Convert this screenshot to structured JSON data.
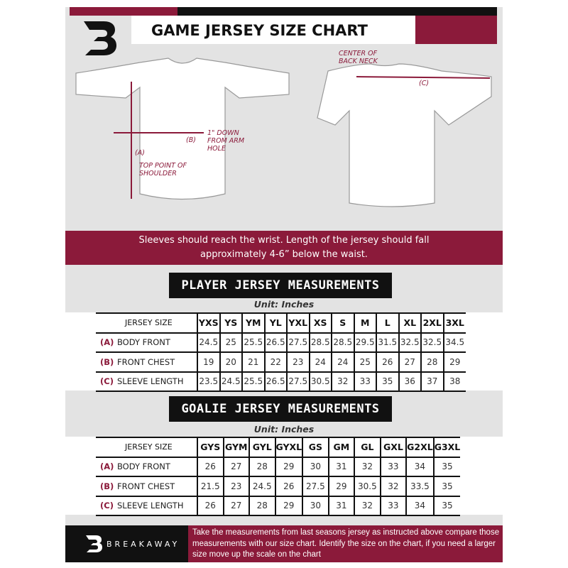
{
  "brand": {
    "name": "BREAKAWAY",
    "logo_letter": "B",
    "accent": "#8b1a3a"
  },
  "title": "GAME JERSEY SIZE CHART",
  "diagram": {
    "a_label": "(A)",
    "a_note": "TOP POINT OF SHOULDER",
    "b_label": "(B)",
    "b_note": "1\" DOWN FROM ARM HOLE",
    "c_label": "(C)",
    "c_note": "CENTER OF BACK NECK"
  },
  "banner": "Sleeves should reach the wrist. Length of the jersey should fall approximately 4-6” below the waist.",
  "player": {
    "heading": "PLAYER JERSEY MEASUREMENTS",
    "unit": "Unit: Inches",
    "header": "JERSEY SIZE",
    "sizes": [
      "YXS",
      "YS",
      "YM",
      "YL",
      "YXL",
      "XS",
      "S",
      "M",
      "L",
      "XL",
      "2XL",
      "3XL"
    ],
    "rows": [
      {
        "key": "(A)",
        "label": "BODY FRONT",
        "values": [
          "24.5",
          "25",
          "25.5",
          "26.5",
          "27.5",
          "28.5",
          "28.5",
          "29.5",
          "31.5",
          "32.5",
          "32.5",
          "34.5"
        ]
      },
      {
        "key": "(B)",
        "label": "FRONT CHEST",
        "values": [
          "19",
          "20",
          "21",
          "22",
          "23",
          "24",
          "24",
          "25",
          "26",
          "27",
          "28",
          "29"
        ]
      },
      {
        "key": "(C)",
        "label": "SLEEVE LENGTH",
        "values": [
          "23.5",
          "24.5",
          "25.5",
          "26.5",
          "27.5",
          "30.5",
          "32",
          "33",
          "35",
          "36",
          "37",
          "38"
        ]
      }
    ]
  },
  "goalie": {
    "heading": "GOALIE JERSEY MEASUREMENTS",
    "unit": "Unit: Inches",
    "header": "JERSEY SIZE",
    "sizes": [
      "GYS",
      "GYM",
      "GYL",
      "GYXL",
      "GS",
      "GM",
      "GL",
      "GXL",
      "G2XL",
      "G3XL"
    ],
    "rows": [
      {
        "key": "(A)",
        "label": "BODY FRONT",
        "values": [
          "26",
          "27",
          "28",
          "29",
          "30",
          "31",
          "32",
          "33",
          "34",
          "35"
        ]
      },
      {
        "key": "(B)",
        "label": "FRONT CHEST",
        "values": [
          "21.5",
          "23",
          "24.5",
          "26",
          "27.5",
          "29",
          "30.5",
          "32",
          "33.5",
          "35"
        ]
      },
      {
        "key": "(C)",
        "label": "SLEEVE LENGTH",
        "values": [
          "26",
          "27",
          "28",
          "29",
          "30",
          "31",
          "32",
          "33",
          "34",
          "35"
        ]
      }
    ]
  },
  "footer": "Take the measurements from last seasons jersey as instructed above compare those measurements  with our size chart. Identify the size on the chart, if you need a larger size move up the scale on the chart"
}
